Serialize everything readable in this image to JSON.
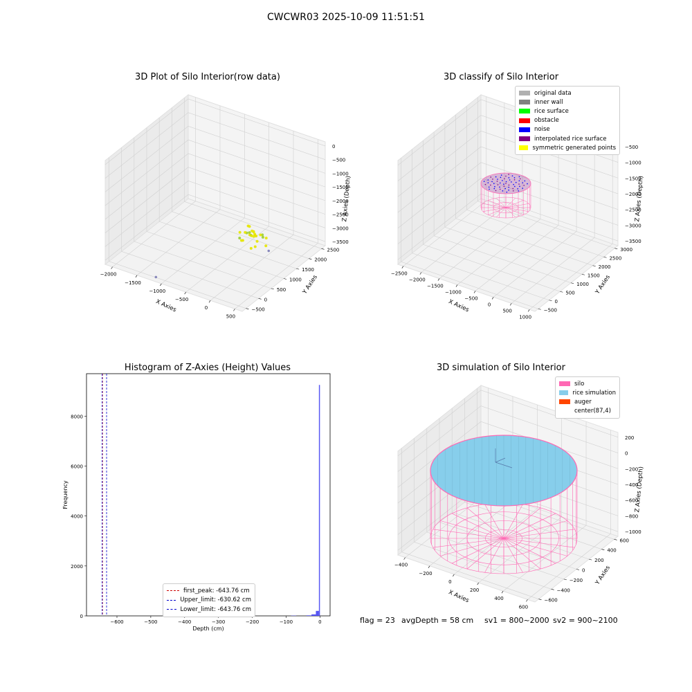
{
  "suptitle": "CWCWR03 2025-10-09 11:51:51",
  "colors": {
    "pane": "#f2f2f2",
    "grid": "#d0d0d0",
    "raw_points": "#e6e600",
    "raw_points_green": "#9acd32",
    "silo": "#ff69b4",
    "rice": "#87ceeb",
    "hist_bar": "#4d4df2",
    "lower_line": "#0000cc",
    "upper_line": "#0000cc",
    "peak_line": "#cc0000"
  },
  "chart_data": [
    {
      "type": "scatter",
      "projection": "3d",
      "title": "3D Plot of Silo Interior(row data)",
      "xlabel": "X Axies",
      "ylabel": "Y Axies",
      "zlabel": "Z Axies (Depth)",
      "xticks": [
        "−2000",
        "−1500",
        "−1000",
        "−500",
        "0",
        "500"
      ],
      "yticks": [
        "−500",
        "0",
        "500",
        "1000",
        "1500",
        "2000",
        "2500"
      ],
      "zticks": [
        "0",
        "−500",
        "−1000",
        "−1500",
        "−2000",
        "−2500",
        "−3000",
        "−3500"
      ],
      "xlim": [
        -2000,
        500
      ],
      "ylim": [
        -500,
        2500
      ],
      "zlim": [
        -3500,
        0
      ],
      "series": [
        {
          "points": [
            [
              -150,
              1050,
              -2400
            ],
            [
              -100,
              1100,
              -2380
            ],
            [
              -120,
              1000,
              -2420
            ],
            [
              -60,
              1060,
              -2400
            ],
            [
              -90,
              1080,
              -2350
            ],
            [
              -110,
              1030,
              -2450
            ],
            [
              -50,
              1000,
              -2430
            ],
            [
              -140,
              1120,
              -2390
            ],
            [
              -80,
              980,
              -2410
            ],
            [
              -30,
              1050,
              -2440
            ],
            [
              -170,
              990,
              -2380
            ],
            [
              -70,
              1090,
              -2470
            ],
            [
              -200,
              1150,
              -2300
            ],
            [
              40,
              950,
              -2500
            ],
            [
              -250,
              1200,
              -2350
            ],
            [
              60,
              1100,
              -2380
            ],
            [
              -220,
              900,
              -2600
            ],
            [
              30,
              900,
              -2650
            ],
            [
              -300,
              1000,
              -2450
            ],
            [
              -10,
              1170,
              -2480
            ],
            [
              120,
              1000,
              -2350
            ],
            [
              -280,
              1150,
              -2550
            ],
            [
              -20,
              850,
              -2700
            ],
            [
              80,
              1200,
              -2550
            ],
            [
              -180,
              870,
              -2550
            ],
            [
              -330,
              1050,
              -2700
            ],
            [
              200,
              950,
              -2550
            ]
          ]
        },
        {
          "points": [
            [
              -1150,
              -350,
              -3500
            ],
            [
              150,
              1150,
              -2900
            ]
          ]
        }
      ]
    },
    {
      "type": "scatter",
      "projection": "3d",
      "title": "3D classify of Silo Interior",
      "xlabel": "X Axies",
      "ylabel": "Y Axies",
      "zlabel": "Z Axies (Depth)",
      "xticks": [
        "−2500",
        "−2000",
        "−1500",
        "−1000",
        "−500",
        "0",
        "500",
        "1000"
      ],
      "yticks": [
        "−500",
        "0",
        "500",
        "1000",
        "1500",
        "2000",
        "2500",
        "3000"
      ],
      "zticks": [
        "−500",
        "−1000",
        "−1500",
        "−2000",
        "−2500",
        "−3000",
        "−3500"
      ],
      "xlim": [
        -2500,
        1000
      ],
      "ylim": [
        -500,
        3000
      ],
      "zlim": [
        -3500,
        0
      ],
      "legend": [
        {
          "label": "original data",
          "color": "#b0b0b0"
        },
        {
          "label": "inner wall",
          "color": "#808080"
        },
        {
          "label": "rice surface",
          "color": "#00ff00"
        },
        {
          "label": "obstacle",
          "color": "#ff0000"
        },
        {
          "label": "noise",
          "color": "#0000ff"
        },
        {
          "label": "interpolated rice surface",
          "color": "#800080"
        },
        {
          "label": "symmetric generated points",
          "color": "#ffff00"
        }
      ],
      "legend_loc": "top-right"
    },
    {
      "type": "bar",
      "title": "Histogram of Z-Axies (Height) Values",
      "xlabel": "Depth (cm)",
      "ylabel": "Frequency",
      "xlim": [
        -690,
        30
      ],
      "ylim": [
        0,
        9700
      ],
      "xticks": [
        -600,
        -500,
        -400,
        -300,
        -200,
        -100,
        0
      ],
      "yticks": [
        0,
        2000,
        4000,
        6000,
        8000
      ],
      "bins": [
        {
          "x0": -85,
          "x1": -70,
          "value": 10
        },
        {
          "x0": -40,
          "x1": -25,
          "value": 20
        },
        {
          "x0": -25,
          "x1": -12,
          "value": 60
        },
        {
          "x0": -12,
          "x1": -3,
          "value": 200
        },
        {
          "x0": -3,
          "x1": 0,
          "value": 9250
        }
      ],
      "vlines": [
        {
          "label": "first_peak: -643.76 cm",
          "x": -643.76,
          "color": "#cc0000"
        },
        {
          "label": "Upper_limit: -630.62 cm",
          "x": -630.62,
          "color": "#0000cc"
        },
        {
          "label": "Lower_limit: -643.76 cm",
          "x": -643.76,
          "color": "#0000cc"
        }
      ],
      "legend_loc": "lower-center"
    },
    {
      "type": "surface",
      "projection": "3d",
      "title": "3D simulation of Silo Interior",
      "xlabel": "X Axies",
      "ylabel": "Y Axies",
      "zlabel": "Z Axies (Depth)",
      "xticks": [
        "−400",
        "−200",
        "0",
        "200",
        "400",
        "600"
      ],
      "yticks": [
        "−600",
        "−400",
        "−200",
        "0",
        "200",
        "400",
        "600"
      ],
      "zticks": [
        "200",
        "0",
        "−200",
        "−400",
        "−600",
        "−800",
        "−1000"
      ],
      "xlim": [
        -500,
        700
      ],
      "ylim": [
        -600,
        700
      ],
      "zlim": [
        -1000,
        250
      ],
      "legend": [
        {
          "label": "silo",
          "color": "#ff69b4"
        },
        {
          "label": "rice simulation",
          "color": "#87ceeb"
        },
        {
          "label": "auger",
          "color": "#ff4500"
        },
        {
          "label": "center(87,4)",
          "color": ""
        }
      ],
      "legend_loc": "top-right"
    }
  ],
  "footer": {
    "flag": "flag = 23",
    "avg": "avgDepth = 58 cm",
    "sv1": "sv1 = 800~2000",
    "sv2": "sv2 = 900~2100"
  }
}
